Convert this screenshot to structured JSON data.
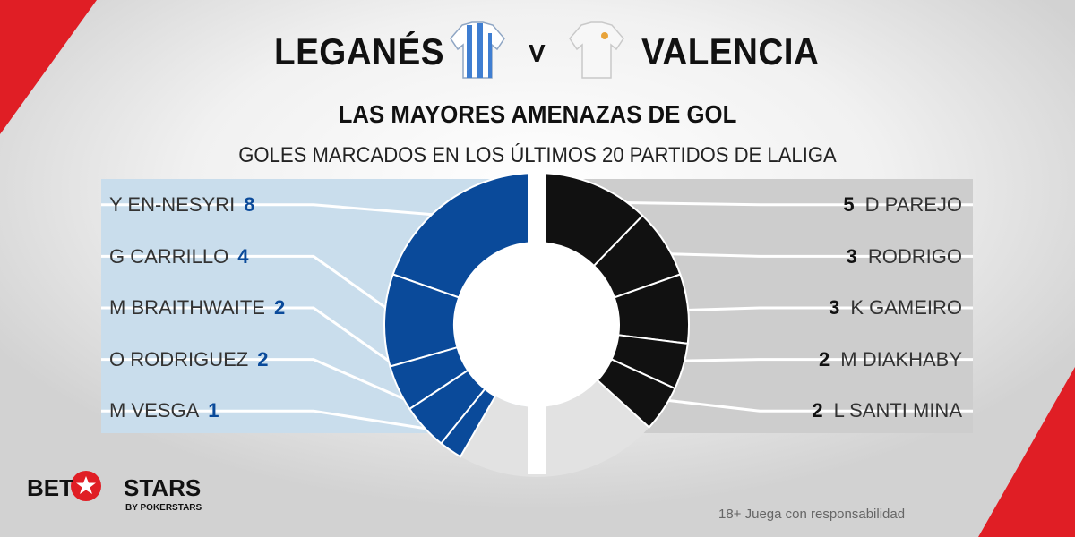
{
  "header": {
    "home_team": "LEGANÉS",
    "vs": "V",
    "away_team": "VALENCIA",
    "title": "LAS MAYORES AMENAZAS DE GOL",
    "subtitle": "GOLES MARCADOS EN LOS ÚLTIMOS 20 PARTIDOS DE LALIGA"
  },
  "colors": {
    "home_panel": "#c9ddec",
    "home_accent": "#0a4a9a",
    "away_panel": "#cdcdcd",
    "away_accent": "#111111",
    "track": "#e2e2e2",
    "brand_red": "#e01e25"
  },
  "chart_data": {
    "type": "donut",
    "title": "LAS MAYORES AMENAZAS DE GOL",
    "subtitle": "GOLES MARCADOS EN LOS ÚLTIMOS 20 PARTIDOS DE LALIGA",
    "unit": "goals",
    "series": [
      {
        "name": "LEGANÉS",
        "side": "left",
        "players": [
          {
            "name": "Y EN-NESYRI",
            "value": 8
          },
          {
            "name": "G CARRILLO",
            "value": 4
          },
          {
            "name": "M BRAITHWAITE",
            "value": 2
          },
          {
            "name": "O RODRIGUEZ",
            "value": 2
          },
          {
            "name": "M VESGA",
            "value": 1
          }
        ]
      },
      {
        "name": "VALENCIA",
        "side": "right",
        "players": [
          {
            "name": "D PAREJO",
            "value": 5
          },
          {
            "name": "RODRIGO",
            "value": 3
          },
          {
            "name": "K GAMEIRO",
            "value": 3
          },
          {
            "name": "M DIAKHABY",
            "value": 2
          },
          {
            "name": "L SANTI MINA",
            "value": 2
          }
        ]
      }
    ]
  },
  "brand": {
    "name_left": "BET",
    "name_right": "STARS",
    "subline": "BY POKERSTARS"
  },
  "footer": {
    "note": "18+ Juega con responsabilidad"
  }
}
